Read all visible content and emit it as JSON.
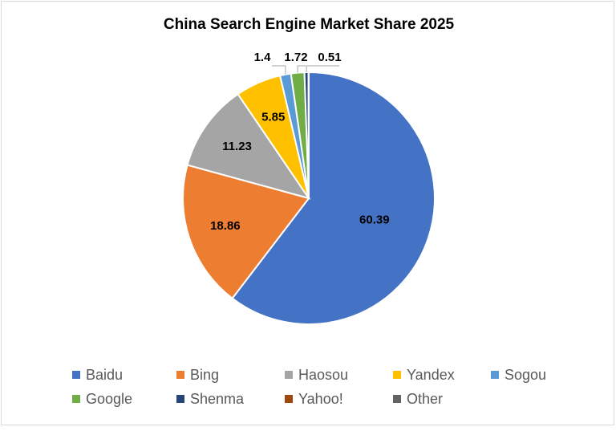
{
  "chart_data": {
    "type": "pie",
    "title": "China Search Engine Market Share 2025",
    "categories": [
      "Baidu",
      "Bing",
      "Haosou",
      "Yandex",
      "Sogou",
      "Google",
      "Shenma",
      "Yahoo!",
      "Other"
    ],
    "values": [
      60.39,
      18.86,
      11.23,
      5.85,
      1.4,
      1.72,
      0.51,
      0.02,
      0.02
    ],
    "colors": [
      "#4472c4",
      "#ed7d31",
      "#a5a5a5",
      "#ffc000",
      "#5b9bd5",
      "#70ad47",
      "#264478",
      "#9e480e",
      "#636363"
    ],
    "legend": "bottom"
  }
}
